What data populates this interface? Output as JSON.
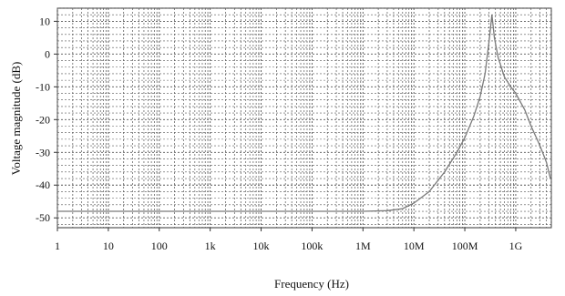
{
  "chart_data": {
    "type": "line",
    "xlabel": "Frequency (Hz)",
    "ylabel": "Voltage magnitude (dB)",
    "x_scale": "log",
    "xlim": [
      1,
      5000000000
    ],
    "ylim": [
      -53,
      14
    ],
    "x_ticks": [
      {
        "value": 1,
        "label": "1"
      },
      {
        "value": 10,
        "label": "10"
      },
      {
        "value": 100,
        "label": "100"
      },
      {
        "value": 1000,
        "label": "1k"
      },
      {
        "value": 10000,
        "label": "10k"
      },
      {
        "value": 100000,
        "label": "100k"
      },
      {
        "value": 1000000,
        "label": "1M"
      },
      {
        "value": 10000000,
        "label": "10M"
      },
      {
        "value": 100000000,
        "label": "100M"
      },
      {
        "value": 1000000000,
        "label": "1G"
      }
    ],
    "y_ticks": [
      {
        "value": 10,
        "label": "10"
      },
      {
        "value": 0,
        "label": "0"
      },
      {
        "value": -10,
        "label": "-10"
      },
      {
        "value": -20,
        "label": "-20"
      },
      {
        "value": -30,
        "label": "-30"
      },
      {
        "value": -40,
        "label": "-40"
      },
      {
        "value": -50,
        "label": "-50"
      }
    ],
    "grid": true,
    "line_color": "#7a7a7a",
    "grid_color": "#555555",
    "series": [
      {
        "x": [
          1,
          10,
          100,
          1000,
          10000,
          100000,
          1000000,
          3000000,
          6000000,
          10000000,
          20000000,
          40000000,
          70000000,
          100000000,
          150000000,
          200000000,
          250000000,
          300000000,
          320000000,
          340000000,
          380000000,
          450000000,
          600000000,
          800000000,
          1000000000,
          1500000000,
          2000000000,
          3000000000,
          4000000000,
          4800000000
        ],
        "y": [
          -48,
          -48,
          -48,
          -48,
          -48,
          -48,
          -48,
          -47.8,
          -47.2,
          -45.5,
          -42,
          -36,
          -30,
          -25.5,
          -19,
          -13,
          -6,
          4,
          8,
          12,
          5,
          -1,
          -7,
          -10,
          -12,
          -17,
          -22,
          -28,
          -33,
          -38
        ]
      }
    ]
  }
}
